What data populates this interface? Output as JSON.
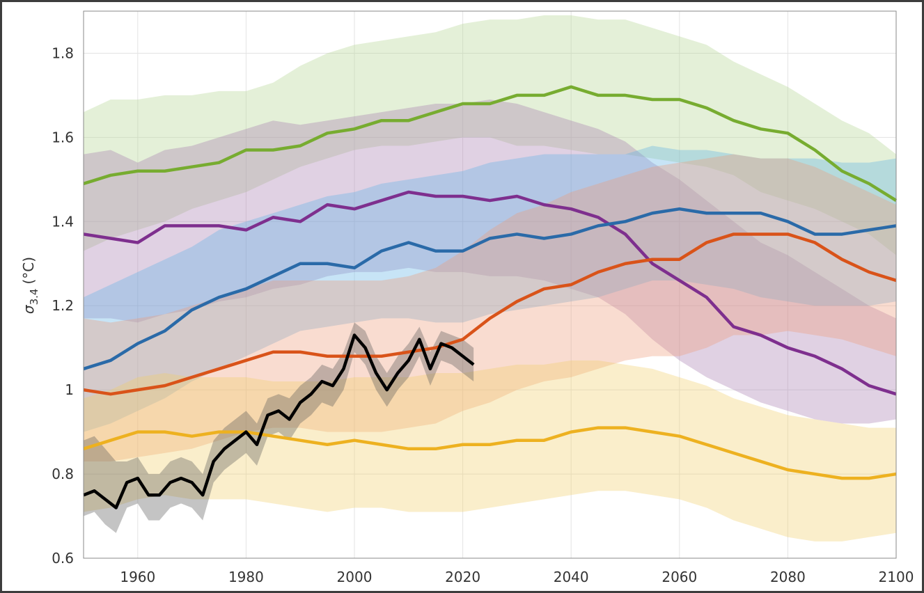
{
  "chart_data": {
    "type": "line",
    "ylabel": {
      "symbol": "σ",
      "subscript": "3.4",
      "unit": "(°C)"
    },
    "xlim": [
      1950,
      2100
    ],
    "ylim": [
      0.6,
      1.9
    ],
    "xticks": [
      1960,
      1980,
      2000,
      2020,
      2040,
      2060,
      2080,
      2100
    ],
    "yticks": [
      0.6,
      0.8,
      1,
      1.2,
      1.4,
      1.6,
      1.8
    ],
    "grid": true,
    "x": [
      1950,
      1955,
      1960,
      1965,
      1970,
      1975,
      1980,
      1985,
      1990,
      1995,
      2000,
      2005,
      2010,
      2015,
      2020,
      2025,
      2030,
      2035,
      2040,
      2045,
      2050,
      2055,
      2060,
      2065,
      2070,
      2075,
      2080,
      2085,
      2090,
      2095,
      2100
    ],
    "series": [
      {
        "color": "#77ac30",
        "band_color": "#b3d38e",
        "values": [
          1.49,
          1.51,
          1.52,
          1.52,
          1.53,
          1.54,
          1.57,
          1.57,
          1.58,
          1.61,
          1.62,
          1.64,
          1.64,
          1.66,
          1.68,
          1.68,
          1.7,
          1.7,
          1.72,
          1.7,
          1.7,
          1.69,
          1.69,
          1.67,
          1.64,
          1.62,
          1.61,
          1.57,
          1.52,
          1.49,
          1.45
        ],
        "upper": [
          1.66,
          1.69,
          1.69,
          1.7,
          1.7,
          1.71,
          1.71,
          1.73,
          1.77,
          1.8,
          1.82,
          1.83,
          1.84,
          1.85,
          1.87,
          1.88,
          1.88,
          1.89,
          1.89,
          1.88,
          1.88,
          1.86,
          1.84,
          1.82,
          1.78,
          1.75,
          1.72,
          1.68,
          1.64,
          1.61,
          1.56
        ],
        "lower": [
          1.33,
          1.36,
          1.38,
          1.4,
          1.43,
          1.45,
          1.47,
          1.5,
          1.53,
          1.55,
          1.57,
          1.58,
          1.58,
          1.59,
          1.6,
          1.6,
          1.58,
          1.58,
          1.57,
          1.56,
          1.56,
          1.55,
          1.54,
          1.53,
          1.51,
          1.47,
          1.45,
          1.43,
          1.4,
          1.37,
          1.32
        ]
      },
      {
        "color": "#7e2f8e",
        "band_color": "#a77ab0",
        "values": [
          1.37,
          1.36,
          1.35,
          1.39,
          1.39,
          1.39,
          1.38,
          1.41,
          1.4,
          1.44,
          1.43,
          1.45,
          1.47,
          1.46,
          1.46,
          1.45,
          1.46,
          1.44,
          1.43,
          1.41,
          1.37,
          1.3,
          1.26,
          1.22,
          1.15,
          1.13,
          1.1,
          1.08,
          1.05,
          1.01,
          0.99
        ],
        "upper": [
          1.56,
          1.57,
          1.54,
          1.57,
          1.58,
          1.6,
          1.62,
          1.64,
          1.63,
          1.64,
          1.65,
          1.66,
          1.67,
          1.68,
          1.68,
          1.69,
          1.68,
          1.66,
          1.64,
          1.62,
          1.59,
          1.54,
          1.5,
          1.45,
          1.4,
          1.35,
          1.32,
          1.28,
          1.24,
          1.2,
          1.17
        ],
        "lower": [
          1.17,
          1.17,
          1.16,
          1.18,
          1.19,
          1.21,
          1.22,
          1.24,
          1.25,
          1.27,
          1.28,
          1.28,
          1.29,
          1.28,
          1.28,
          1.27,
          1.27,
          1.26,
          1.24,
          1.22,
          1.18,
          1.12,
          1.07,
          1.03,
          1.0,
          0.97,
          0.95,
          0.93,
          0.92,
          0.92,
          0.93
        ]
      },
      {
        "color": "#2a6aa8",
        "band_color": "#5fb3e6",
        "values": [
          1.05,
          1.07,
          1.11,
          1.14,
          1.19,
          1.22,
          1.24,
          1.27,
          1.3,
          1.3,
          1.29,
          1.33,
          1.35,
          1.33,
          1.33,
          1.36,
          1.37,
          1.36,
          1.37,
          1.39,
          1.4,
          1.42,
          1.43,
          1.42,
          1.42,
          1.42,
          1.4,
          1.37,
          1.37,
          1.38,
          1.39
        ],
        "upper": [
          1.22,
          1.25,
          1.28,
          1.31,
          1.34,
          1.38,
          1.4,
          1.42,
          1.44,
          1.46,
          1.47,
          1.49,
          1.5,
          1.51,
          1.52,
          1.54,
          1.55,
          1.56,
          1.56,
          1.56,
          1.56,
          1.58,
          1.57,
          1.57,
          1.56,
          1.55,
          1.55,
          1.55,
          1.54,
          1.54,
          1.55
        ],
        "lower": [
          0.9,
          0.92,
          0.95,
          0.98,
          1.02,
          1.05,
          1.08,
          1.11,
          1.14,
          1.15,
          1.16,
          1.17,
          1.17,
          1.16,
          1.16,
          1.18,
          1.19,
          1.2,
          1.21,
          1.22,
          1.24,
          1.26,
          1.26,
          1.25,
          1.24,
          1.22,
          1.21,
          1.2,
          1.2,
          1.2,
          1.21
        ]
      },
      {
        "color": "#d95319",
        "band_color": "#ee9a78",
        "values": [
          1.0,
          0.99,
          1.0,
          1.01,
          1.03,
          1.05,
          1.07,
          1.09,
          1.09,
          1.08,
          1.08,
          1.08,
          1.09,
          1.1,
          1.12,
          1.17,
          1.21,
          1.24,
          1.25,
          1.28,
          1.3,
          1.31,
          1.31,
          1.35,
          1.37,
          1.37,
          1.37,
          1.35,
          1.31,
          1.28,
          1.26
        ],
        "upper": [
          1.17,
          1.16,
          1.17,
          1.18,
          1.2,
          1.22,
          1.24,
          1.26,
          1.26,
          1.26,
          1.26,
          1.26,
          1.27,
          1.29,
          1.33,
          1.38,
          1.42,
          1.44,
          1.47,
          1.49,
          1.51,
          1.53,
          1.54,
          1.55,
          1.56,
          1.55,
          1.55,
          1.53,
          1.5,
          1.47,
          1.44
        ],
        "lower": [
          0.83,
          0.83,
          0.84,
          0.85,
          0.86,
          0.88,
          0.9,
          0.91,
          0.91,
          0.9,
          0.9,
          0.9,
          0.91,
          0.92,
          0.95,
          0.97,
          1.0,
          1.02,
          1.03,
          1.05,
          1.07,
          1.08,
          1.08,
          1.1,
          1.13,
          1.13,
          1.14,
          1.13,
          1.12,
          1.1,
          1.08
        ]
      },
      {
        "color": "#edb120",
        "band_color": "#f1cf6a",
        "values": [
          0.86,
          0.88,
          0.9,
          0.9,
          0.89,
          0.9,
          0.9,
          0.89,
          0.88,
          0.87,
          0.88,
          0.87,
          0.86,
          0.86,
          0.87,
          0.87,
          0.88,
          0.88,
          0.9,
          0.91,
          0.91,
          0.9,
          0.89,
          0.87,
          0.85,
          0.83,
          0.81,
          0.8,
          0.79,
          0.79,
          0.8
        ],
        "upper": [
          0.98,
          1.0,
          1.03,
          1.04,
          1.03,
          1.03,
          1.03,
          1.02,
          1.02,
          1.02,
          1.03,
          1.03,
          1.03,
          1.04,
          1.04,
          1.05,
          1.06,
          1.06,
          1.07,
          1.07,
          1.06,
          1.05,
          1.03,
          1.01,
          0.98,
          0.96,
          0.94,
          0.93,
          0.92,
          0.91,
          0.91
        ],
        "lower": [
          0.71,
          0.72,
          0.74,
          0.75,
          0.74,
          0.74,
          0.74,
          0.73,
          0.72,
          0.71,
          0.72,
          0.72,
          0.71,
          0.71,
          0.71,
          0.72,
          0.73,
          0.74,
          0.75,
          0.76,
          0.76,
          0.75,
          0.74,
          0.72,
          0.69,
          0.67,
          0.65,
          0.64,
          0.64,
          0.65,
          0.66
        ]
      },
      {
        "color": "#000000",
        "band_color": "#555555",
        "x": [
          1950,
          1952,
          1954,
          1956,
          1958,
          1960,
          1962,
          1964,
          1966,
          1968,
          1970,
          1972,
          1974,
          1976,
          1978,
          1980,
          1982,
          1984,
          1986,
          1988,
          1990,
          1992,
          1994,
          1996,
          1998,
          2000,
          2002,
          2004,
          2006,
          2008,
          2010,
          2012,
          2014,
          2016,
          2018,
          2020,
          2022
        ],
        "values": [
          0.75,
          0.76,
          0.74,
          0.72,
          0.78,
          0.79,
          0.75,
          0.75,
          0.78,
          0.79,
          0.78,
          0.75,
          0.83,
          0.86,
          0.88,
          0.9,
          0.87,
          0.94,
          0.95,
          0.93,
          0.97,
          0.99,
          1.02,
          1.01,
          1.05,
          1.13,
          1.1,
          1.04,
          1.0,
          1.04,
          1.07,
          1.12,
          1.05,
          1.11,
          1.1,
          1.08,
          1.06
        ],
        "upper": [
          0.88,
          0.89,
          0.86,
          0.83,
          0.83,
          0.84,
          0.8,
          0.8,
          0.83,
          0.84,
          0.83,
          0.8,
          0.88,
          0.91,
          0.93,
          0.95,
          0.92,
          0.98,
          0.99,
          0.98,
          1.01,
          1.03,
          1.06,
          1.05,
          1.09,
          1.16,
          1.14,
          1.08,
          1.04,
          1.08,
          1.11,
          1.15,
          1.09,
          1.14,
          1.13,
          1.12,
          1.1
        ],
        "lower": [
          0.7,
          0.71,
          0.68,
          0.66,
          0.72,
          0.73,
          0.69,
          0.69,
          0.72,
          0.73,
          0.72,
          0.69,
          0.78,
          0.81,
          0.83,
          0.85,
          0.82,
          0.89,
          0.9,
          0.88,
          0.92,
          0.94,
          0.97,
          0.96,
          1.0,
          1.09,
          1.06,
          1.0,
          0.96,
          1.0,
          1.03,
          1.08,
          1.01,
          1.07,
          1.06,
          1.04,
          1.02
        ]
      }
    ]
  }
}
